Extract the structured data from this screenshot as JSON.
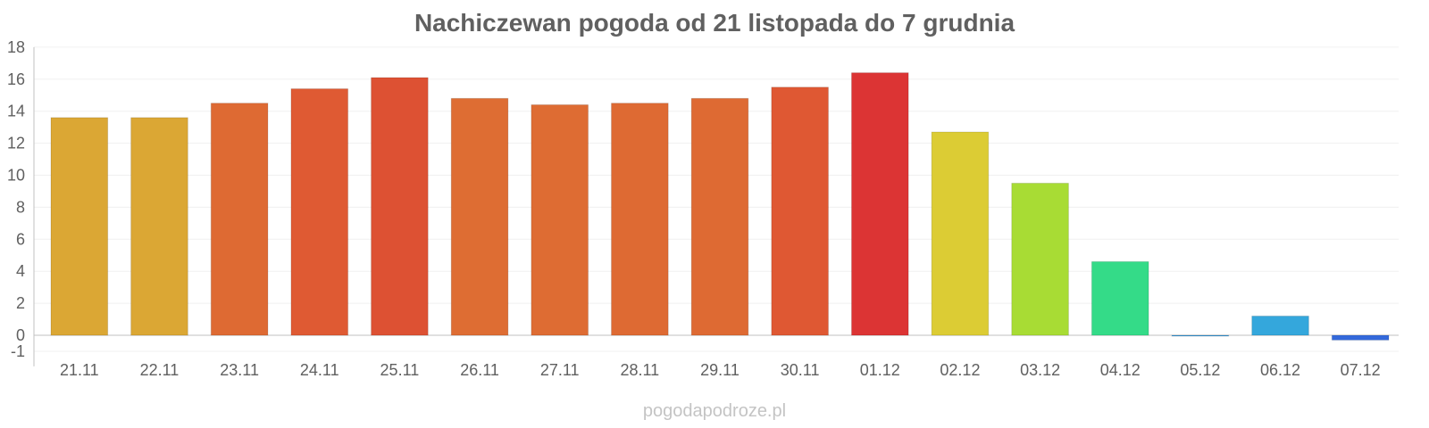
{
  "chart_data": {
    "type": "bar",
    "title": "Nachiczewan pogoda od 21 listopada do 7 grudnia",
    "xlabel": "",
    "ylabel": "",
    "categories": [
      "21.11",
      "22.11",
      "23.11",
      "24.11",
      "25.11",
      "26.11",
      "27.11",
      "28.11",
      "29.11",
      "30.11",
      "01.12",
      "02.12",
      "03.12",
      "04.12",
      "05.12",
      "06.12",
      "07.12"
    ],
    "values": [
      13.6,
      13.6,
      14.5,
      15.4,
      16.1,
      14.8,
      14.4,
      14.5,
      14.8,
      15.5,
      16.4,
      12.7,
      9.5,
      4.6,
      0.0,
      1.2,
      -0.3
    ],
    "colors": [
      "#dba734",
      "#dba734",
      "#de6a33",
      "#df5a33",
      "#dd5133",
      "#de6d33",
      "#de6c33",
      "#de6a33",
      "#de6a33",
      "#df5833",
      "#dc3434",
      "#dccc34",
      "#a8dc34",
      "#34db88",
      "#3498db",
      "#34a7dc",
      "#3469db"
    ],
    "y_ticks": [
      "18",
      "16",
      "14",
      "12",
      "10",
      "8",
      "6",
      "4",
      "2",
      "0",
      "-1"
    ],
    "ylim": [
      -1.5,
      18
    ],
    "grid": true,
    "legend": "none"
  },
  "watermark": "pogodapodroze.pl"
}
